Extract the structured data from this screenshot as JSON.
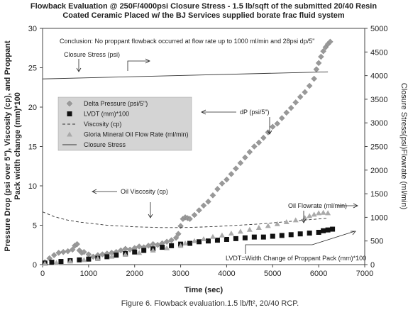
{
  "chart_data": {
    "type": "scatter",
    "title_line1": "Flowback Evaluation @ 250F/4000psi Closure Stress - 1.5 lb/sqft of the submitted 20/40 Resin",
    "title_line2": "Coated Ceramic Placed w/ the BJ Services supplied borate frac fluid system",
    "xlabel": "Time (sec)",
    "ylabel_line1": "Pressure Drop (psi over 5\"), Viscosity (cp), and Proppant",
    "ylabel_line2": "Pack width change (mm)*100",
    "y2label": "Closure Stress(psi)Flowrate (ml/min)",
    "xlim": [
      0,
      7000
    ],
    "ylim": [
      0,
      30
    ],
    "y2lim": [
      0,
      5000
    ],
    "x_ticks": [
      "0",
      "1000",
      "2000",
      "3000",
      "4000",
      "5000",
      "6000",
      "7000"
    ],
    "y_ticks": [
      "0",
      "5",
      "10",
      "15",
      "20",
      "25",
      "30"
    ],
    "y2_ticks": [
      "0",
      "500",
      "1000",
      "1500",
      "2000",
      "2500",
      "3000",
      "3500",
      "4000",
      "4500",
      "5000"
    ],
    "annotations": {
      "conclusion": "Conclusion: No proppant flowback occurred at flow rate up to 1000 ml/min and 28psi dp/5\"",
      "closure_stress": "Closure Stress (psi)",
      "dp": "dP (psi/5\")",
      "oil_viscosity": "Oil Viscosity (cp)",
      "oil_flowrate": "Oil Flowrate (ml/min)",
      "lvdt": "LVDT=Width Change of Proppant Pack (mm)*100"
    },
    "legend_position": "upper-left",
    "caption": "Figure 6.  Flowback evaluation.1.5 lb/ft², 20/40 RCP.",
    "series": [
      {
        "name": "Delta Pressure (psi/5\")",
        "axis": "left",
        "marker": "diamond",
        "color": "#999999",
        "x": [
          50,
          150,
          250,
          350,
          450,
          550,
          650,
          700,
          750,
          800,
          850,
          900,
          1000,
          1100,
          1200,
          1300,
          1400,
          1500,
          1600,
          1700,
          1800,
          1900,
          2000,
          2100,
          2200,
          2300,
          2400,
          2500,
          2600,
          2700,
          2800,
          2900,
          2950,
          3000,
          3050,
          3100,
          3150,
          3200,
          3300,
          3400,
          3500,
          3600,
          3700,
          3800,
          3900,
          4000,
          4100,
          4200,
          4300,
          4400,
          4500,
          4600,
          4700,
          4800,
          4900,
          5000,
          5100,
          5200,
          5300,
          5400,
          5500,
          5600,
          5700,
          5800,
          5900,
          5950,
          6000,
          6050,
          6100,
          6150,
          6200,
          6250
        ],
        "y": [
          0.3,
          0.8,
          1.2,
          1.5,
          1.6,
          1.7,
          1.9,
          2.4,
          2.6,
          1.8,
          1.5,
          1.6,
          1.3,
          1.0,
          1.2,
          1.3,
          1.4,
          1.5,
          1.6,
          1.8,
          2.0,
          1.9,
          2.1,
          2.3,
          2.2,
          2.4,
          2.6,
          2.5,
          2.7,
          2.9,
          3.1,
          3.4,
          3.9,
          4.9,
          5.8,
          6.0,
          5.9,
          5.8,
          6.3,
          6.9,
          7.5,
          8.0,
          8.8,
          9.6,
          10.3,
          10.8,
          11.5,
          12.2,
          12.9,
          13.6,
          14.3,
          15.0,
          15.5,
          16.1,
          16.8,
          17.5,
          17.9,
          18.6,
          19.3,
          19.9,
          20.6,
          21.3,
          21.9,
          22.7,
          23.6,
          24.8,
          25.6,
          26.4,
          27.1,
          27.6,
          28.0,
          28.3
        ]
      },
      {
        "name": "LVDT (mm)*100",
        "axis": "left",
        "marker": "square",
        "color": "#111111",
        "x": [
          50,
          200,
          400,
          600,
          800,
          1000,
          1200,
          1400,
          1600,
          1800,
          2000,
          2200,
          2400,
          2600,
          2800,
          3000,
          3200,
          3400,
          3600,
          3800,
          4000,
          4200,
          4400,
          4600,
          4800,
          5000,
          5200,
          5400,
          5600,
          5800,
          6000,
          6100,
          6200,
          6300
        ],
        "y": [
          0.2,
          0.3,
          0.4,
          0.5,
          0.6,
          0.7,
          0.8,
          1.0,
          1.2,
          1.4,
          1.6,
          1.8,
          2.0,
          2.2,
          2.4,
          2.6,
          2.7,
          2.9,
          3.0,
          3.1,
          3.2,
          3.3,
          3.4,
          3.5,
          3.5,
          3.6,
          3.7,
          3.8,
          3.9,
          4.0,
          4.1,
          4.3,
          4.4,
          4.5
        ]
      },
      {
        "name": "Viscosity (cp)",
        "axis": "left",
        "marker": "dashed",
        "color": "#333333",
        "x": [
          0,
          250,
          500,
          800,
          1100,
          1400,
          1700,
          2000,
          2300,
          2600,
          2900,
          3200,
          3500,
          3800,
          4100,
          4400,
          4700,
          5000,
          5300,
          5600,
          5900,
          6200
        ],
        "y": [
          6.7,
          6.1,
          5.7,
          5.4,
          5.2,
          5.0,
          4.9,
          4.8,
          4.75,
          4.7,
          4.7,
          4.72,
          4.78,
          4.85,
          4.95,
          5.05,
          5.15,
          5.3,
          5.45,
          5.6,
          5.75,
          5.9
        ]
      },
      {
        "name": "Gloria Mineral Oil Flow Rate (ml/min)",
        "axis": "right",
        "marker": "triangle",
        "color": "#aaaaaa",
        "x": [
          50,
          300,
          600,
          900,
          1200,
          1500,
          1800,
          2100,
          2400,
          2700,
          3000,
          3100,
          3300,
          3500,
          3700,
          3900,
          4100,
          4300,
          4500,
          4700,
          4900,
          5100,
          5300,
          5500,
          5700,
          5800,
          5900,
          6000,
          6100,
          6200
        ],
        "y": [
          20,
          40,
          70,
          100,
          130,
          170,
          210,
          250,
          300,
          350,
          400,
          450,
          500,
          540,
          590,
          620,
          660,
          700,
          740,
          780,
          820,
          860,
          900,
          940,
          990,
          1030,
          1060,
          1090,
          1100,
          1090
        ]
      },
      {
        "name": "Closure Stress",
        "axis": "right",
        "marker": "line",
        "color": "#333333",
        "x": [
          0,
          6200
        ],
        "y": [
          3930,
          4080
        ]
      }
    ]
  }
}
